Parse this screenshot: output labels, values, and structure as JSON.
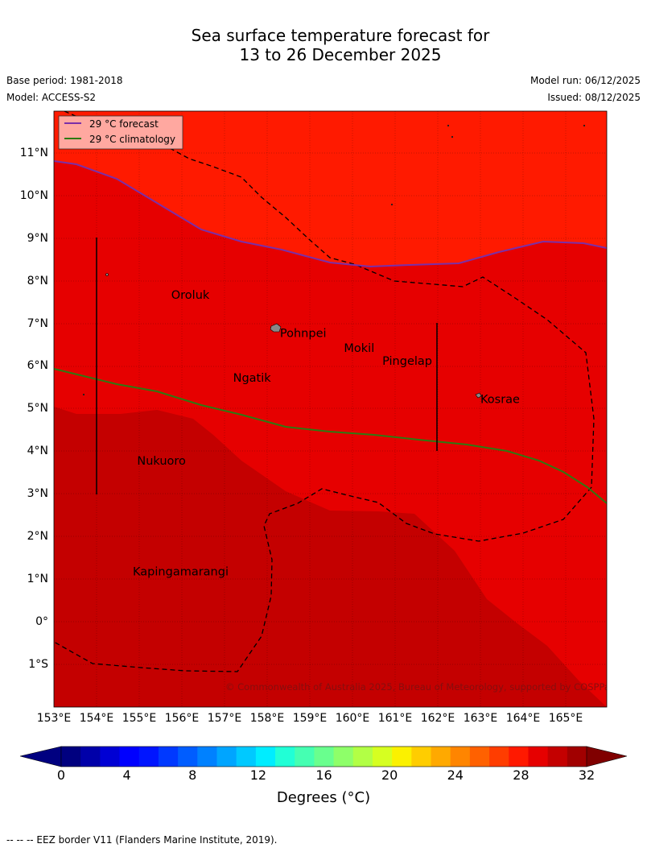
{
  "title": {
    "line1": "Sea surface temperature forecast for",
    "line2": "13 to 26 December 2025"
  },
  "meta": {
    "base_period": "Base period: 1981-2018",
    "model": "Model: ACCESS-S2",
    "model_run": "Model run: 06/12/2025",
    "issued": "Issued: 08/12/2025"
  },
  "legend": {
    "forecast": "29 °C  forecast",
    "climatology": "29 °C  climatology",
    "forecast_color": "#7b2fa8",
    "climatology_color": "#2d7a12"
  },
  "colors": {
    "warm_zone": "#ff1a00",
    "mid_zone": "#e60000",
    "hot_zone": "#c40000",
    "island": "#888888"
  },
  "places": [
    {
      "name": "Oroluk",
      "lon": 155.75,
      "lat": 7.6
    },
    {
      "name": "Pohnpei",
      "lon": 158.3,
      "lat": 6.7
    },
    {
      "name": "Mokil",
      "lon": 159.8,
      "lat": 6.35
    },
    {
      "name": "Pingelap",
      "lon": 160.7,
      "lat": 6.05
    },
    {
      "name": "Ngatik",
      "lon": 157.2,
      "lat": 5.65
    },
    {
      "name": "Kosrae",
      "lon": 163.0,
      "lat": 5.15
    },
    {
      "name": "Nukuoro",
      "lon": 154.95,
      "lat": 3.7
    },
    {
      "name": "Kapingamarangi",
      "lon": 154.85,
      "lat": 1.1
    }
  ],
  "lat_ticks": [
    "11°N",
    "10°N",
    "9°N",
    "8°N",
    "7°N",
    "6°N",
    "5°N",
    "4°N",
    "3°N",
    "2°N",
    "1°N",
    "0°",
    "1°S"
  ],
  "lon_ticks": [
    "153°E",
    "154°E",
    "155°E",
    "156°E",
    "157°E",
    "158°E",
    "159°E",
    "160°E",
    "161°E",
    "162°E",
    "163°E",
    "164°E",
    "165°E"
  ],
  "copyright": "© Commonwealth of Australia 2025, Bureau of Meteorology, supported by COSPPac",
  "colorbar": {
    "ticks": [
      "0",
      "4",
      "8",
      "12",
      "16",
      "20",
      "24",
      "28",
      "32"
    ],
    "label": "Degrees (°C)",
    "colors": [
      "#00007f",
      "#0000a9",
      "#0000d4",
      "#0000ff",
      "#0015ff",
      "#0039ff",
      "#005dff",
      "#0081ff",
      "#00a5ff",
      "#00c9ff",
      "#00edff",
      "#21ffd6",
      "#45ffb2",
      "#69ff8e",
      "#8eff69",
      "#b2ff45",
      "#d6ff21",
      "#fbf100",
      "#ffcd00",
      "#ffa900",
      "#ff8500",
      "#ff6100",
      "#ff3d00",
      "#ff1900",
      "#e60000",
      "#c40000",
      "#a10000"
    ],
    "under_color": "#000080",
    "over_color": "#800000"
  },
  "footer": "-- -- -- EEZ border V11 (Flanders Marine Institute, 2019)."
}
